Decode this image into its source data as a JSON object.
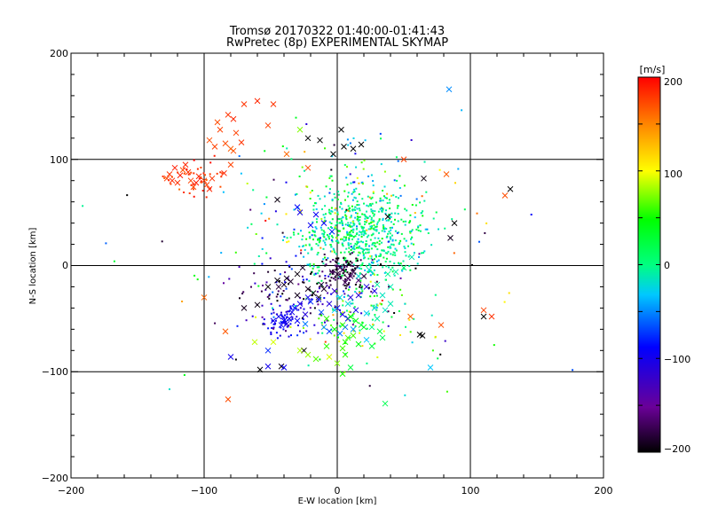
{
  "chart_data": {
    "type": "scatter",
    "title": "Tromsø 20170322 01:40:00-01:41:43",
    "subtitle": "RwPretec (8p) EXPERIMENTAL SKYMAP",
    "xlabel": "E-W location [km]",
    "ylabel": "N-S location [km]",
    "xlim": [
      -200,
      200
    ],
    "ylim": [
      -200,
      200
    ],
    "grid": true,
    "xticks": [
      "−200",
      "−100",
      "0",
      "100",
      "200"
    ],
    "yticks": [
      "200",
      "100",
      "0",
      "−100",
      "−200"
    ],
    "colorbar": {
      "label": "[m/s]",
      "range": [
        -200,
        200
      ],
      "ticks": [
        "200",
        "100",
        "0",
        "−100",
        "−200"
      ],
      "colormap": "rainbow: black → purple → blue → cyan → green → yellow → orange → red"
    },
    "markers": [
      "x",
      "small-dot"
    ],
    "crosses": [
      [
        -128,
        82,
        175
      ],
      [
        -124,
        80,
        185
      ],
      [
        -120,
        78,
        180
      ],
      [
        -118,
        85,
        190
      ],
      [
        -116,
        90,
        170
      ],
      [
        -114,
        95,
        185
      ],
      [
        -112,
        88,
        180
      ],
      [
        -110,
        80,
        175
      ],
      [
        -106,
        78,
        190
      ],
      [
        -104,
        84,
        185
      ],
      [
        -100,
        80,
        180
      ],
      [
        -98,
        76,
        175
      ],
      [
        -96,
        72,
        185
      ],
      [
        -94,
        82,
        180
      ],
      [
        -122,
        92,
        190
      ],
      [
        -126,
        86,
        180
      ],
      [
        -108,
        74,
        175
      ],
      [
        -85,
        87,
        185
      ],
      [
        -80,
        95,
        175
      ],
      [
        -78,
        108,
        170
      ],
      [
        -76,
        125,
        175
      ],
      [
        -82,
        142,
        180
      ],
      [
        -78,
        138,
        185
      ],
      [
        -90,
        135,
        170
      ],
      [
        -70,
        152,
        180
      ],
      [
        -60,
        155,
        185
      ],
      [
        -48,
        152,
        180
      ],
      [
        -52,
        132,
        175
      ],
      [
        -84,
        115,
        170
      ],
      [
        -80,
        110,
        165
      ],
      [
        -38,
        105,
        160
      ],
      [
        -22,
        92,
        170
      ],
      [
        -92,
        112,
        175
      ],
      [
        -72,
        116,
        180
      ],
      [
        -88,
        128,
        175
      ],
      [
        -96,
        118,
        170
      ],
      [
        -100,
        -30,
        160
      ],
      [
        -84,
        -62,
        165
      ],
      [
        -82,
        -126,
        170
      ],
      [
        55,
        -48,
        160
      ],
      [
        78,
        -56,
        170
      ],
      [
        110,
        -42,
        175
      ],
      [
        116,
        -48,
        180
      ],
      [
        126,
        66,
        170
      ],
      [
        82,
        86,
        165
      ],
      [
        50,
        100,
        175
      ],
      [
        3,
        128,
        -200
      ],
      [
        -13,
        118,
        -200
      ],
      [
        -22,
        120,
        -200
      ],
      [
        5,
        112,
        -200
      ],
      [
        12,
        110,
        -200
      ],
      [
        18,
        114,
        -200
      ],
      [
        -3,
        105,
        -200
      ],
      [
        -45,
        62,
        -195
      ],
      [
        38,
        46,
        -200
      ],
      [
        65,
        82,
        -195
      ],
      [
        85,
        26,
        -190
      ],
      [
        88,
        40,
        -200
      ],
      [
        110,
        -48,
        -200
      ],
      [
        130,
        72,
        -200
      ],
      [
        62,
        -65,
        -200
      ],
      [
        64,
        -66,
        -200
      ],
      [
        -25,
        -80,
        -200
      ],
      [
        -58,
        -98,
        -200
      ],
      [
        -42,
        -95,
        -195
      ],
      [
        -60,
        -37,
        -195
      ],
      [
        -70,
        -40,
        -190
      ],
      [
        -52,
        -20,
        -200
      ],
      [
        -45,
        -14,
        -195
      ],
      [
        -38,
        -12,
        -190
      ],
      [
        -30,
        -8,
        -195
      ],
      [
        -26,
        -2,
        -185
      ],
      [
        -22,
        -22,
        -190
      ],
      [
        -18,
        -26,
        -195
      ],
      [
        -14,
        -30,
        -190
      ],
      [
        -10,
        -22,
        -185
      ],
      [
        -30,
        -28,
        -190
      ],
      [
        -12,
        -18,
        -185
      ],
      [
        0,
        -8,
        -180
      ],
      [
        4,
        -4,
        -175
      ],
      [
        8,
        -12,
        -170
      ],
      [
        12,
        -6,
        -175
      ],
      [
        6,
        -16,
        -170
      ],
      [
        2,
        -2,
        -165
      ],
      [
        10,
        -10,
        -170
      ],
      [
        16,
        -14,
        -165
      ],
      [
        -4,
        -6,
        -170
      ],
      [
        20,
        -10,
        -175
      ],
      [
        -35,
        -15,
        -185
      ],
      [
        -40,
        -18,
        -190
      ],
      [
        -44,
        -20,
        -180
      ],
      [
        -36,
        -50,
        -100
      ],
      [
        -40,
        -52,
        -95
      ],
      [
        -44,
        -48,
        -100
      ],
      [
        -38,
        -55,
        -105
      ],
      [
        -34,
        -44,
        -100
      ],
      [
        -42,
        -56,
        -95
      ],
      [
        -48,
        -52,
        -100
      ],
      [
        -30,
        -52,
        -95
      ],
      [
        -22,
        -30,
        -100
      ],
      [
        -14,
        -32,
        -95
      ],
      [
        -6,
        -36,
        -110
      ],
      [
        0,
        -40,
        -100
      ],
      [
        4,
        -46,
        -100
      ],
      [
        8,
        -50,
        -95
      ],
      [
        14,
        -42,
        -100
      ],
      [
        -2,
        -24,
        -120
      ],
      [
        10,
        -30,
        -110
      ],
      [
        16,
        -28,
        -115
      ],
      [
        22,
        -20,
        -110
      ],
      [
        28,
        -24,
        -105
      ],
      [
        -28,
        -36,
        -105
      ],
      [
        -24,
        -46,
        -110
      ],
      [
        -80,
        -86,
        -100
      ],
      [
        -40,
        -96,
        -95
      ],
      [
        -52,
        -95,
        -100
      ],
      [
        -20,
        38,
        -95
      ],
      [
        -28,
        50,
        -100
      ],
      [
        -30,
        55,
        -90
      ],
      [
        -16,
        48,
        -95
      ],
      [
        -10,
        40,
        -90
      ],
      [
        -4,
        32,
        -85
      ],
      [
        2,
        -64,
        -60
      ],
      [
        -10,
        -58,
        -55
      ],
      [
        -24,
        -55,
        -60
      ],
      [
        -12,
        -44,
        -70
      ],
      [
        -6,
        -62,
        -75
      ],
      [
        6,
        -58,
        -65
      ],
      [
        -52,
        -80,
        -80
      ],
      [
        -32,
        -40,
        -85
      ],
      [
        -20,
        -34,
        -80
      ],
      [
        12,
        -60,
        -50
      ],
      [
        22,
        -70,
        -40
      ],
      [
        22,
        -45,
        -35
      ],
      [
        28,
        -40,
        -30
      ],
      [
        34,
        -28,
        -20
      ],
      [
        40,
        -20,
        -15
      ],
      [
        44,
        -6,
        -10
      ],
      [
        38,
        -8,
        -5
      ],
      [
        50,
        -2,
        5
      ],
      [
        56,
        8,
        -15
      ],
      [
        16,
        -10,
        -25
      ],
      [
        24,
        -4,
        -20
      ],
      [
        30,
        -18,
        -10
      ],
      [
        8,
        -36,
        -25
      ],
      [
        2,
        -30,
        -30
      ],
      [
        -2,
        -42,
        -35
      ],
      [
        36,
        -42,
        -20
      ],
      [
        40,
        -36,
        -15
      ],
      [
        30,
        -50,
        -10
      ],
      [
        26,
        -58,
        0
      ],
      [
        32,
        -62,
        20
      ],
      [
        34,
        -68,
        15
      ],
      [
        20,
        -58,
        30
      ],
      [
        18,
        -56,
        25
      ],
      [
        10,
        -48,
        40
      ],
      [
        14,
        -52,
        35
      ],
      [
        4,
        -56,
        45
      ],
      [
        -2,
        -60,
        40
      ],
      [
        -8,
        -50,
        50
      ],
      [
        12,
        -66,
        55
      ],
      [
        8,
        -68,
        60
      ],
      [
        6,
        -72,
        45
      ],
      [
        26,
        -76,
        20
      ],
      [
        16,
        -74,
        35
      ],
      [
        6,
        -84,
        50
      ],
      [
        4,
        -78,
        55
      ],
      [
        0,
        -92,
        70
      ],
      [
        -22,
        -84,
        75
      ],
      [
        -28,
        -80,
        80
      ],
      [
        -62,
        -72,
        85
      ],
      [
        -48,
        -72,
        90
      ],
      [
        -6,
        -86,
        90
      ],
      [
        10,
        -96,
        20
      ],
      [
        36,
        -130,
        15
      ],
      [
        70,
        -96,
        -40
      ],
      [
        84,
        166,
        -55
      ],
      [
        -28,
        128,
        70
      ],
      [
        4,
        -102,
        45
      ],
      [
        -16,
        -88,
        60
      ],
      [
        -8,
        -76,
        50
      ]
    ]
  }
}
